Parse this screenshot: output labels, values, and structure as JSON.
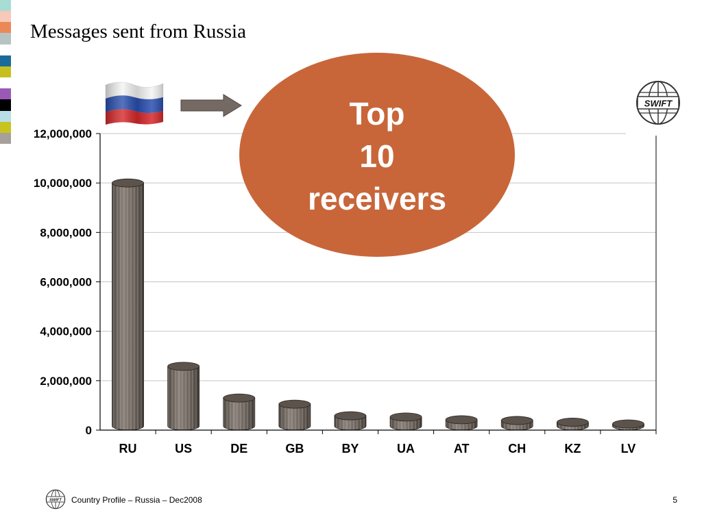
{
  "slide": {
    "title": "Messages sent from Russia",
    "callout": {
      "line1": "Top",
      "line2": "10",
      "line3": "receivers",
      "color": "#c8663a"
    },
    "footer": "Country Profile –  Russia – Dec2008",
    "page_number": "5",
    "logo_text": "SWIFT",
    "icons": [
      "russia-flag-icon",
      "right-arrow-icon",
      "swift-globe-logo-icon"
    ],
    "strip_colors": [
      "#a8dcd4",
      "#f7c9b8",
      "#ec8858",
      "#b5c4c2",
      "#ffffff",
      "#1a6b9b",
      "#c5c020",
      "#ffffff",
      "#9b59b6",
      "#000000",
      "#b9dde6",
      "#c8c41e",
      "#a7a09a"
    ]
  },
  "chart_data": {
    "type": "bar",
    "categories": [
      "RU",
      "US",
      "DE",
      "GB",
      "BY",
      "UA",
      "AT",
      "CH",
      "KZ",
      "LV"
    ],
    "values": [
      10000000,
      2580000,
      1300000,
      1050000,
      580000,
      530000,
      420000,
      390000,
      320000,
      250000
    ],
    "ylim": [
      0,
      12000000
    ],
    "yticks": [
      0,
      2000000,
      4000000,
      6000000,
      8000000,
      10000000,
      12000000
    ],
    "ytick_labels": [
      "0",
      "2,000,000",
      "4,000,000",
      "6,000,000",
      "8,000,000",
      "10,000,000",
      "12,000,000"
    ],
    "grid": true,
    "bar_color": "#6e655d"
  }
}
